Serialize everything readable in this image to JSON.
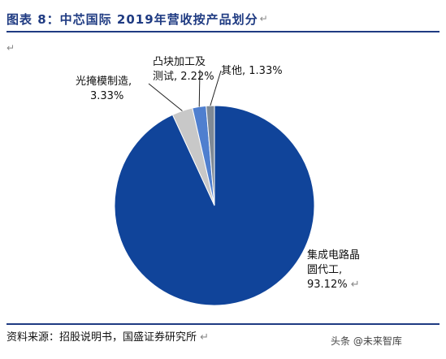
{
  "title": "图表 8：中芯国际 2019年营收按产品划分",
  "return_mark": "↵",
  "source": "资料来源：招股说明书，国盛证券研究所",
  "watermark": "头条 @未来智库",
  "chart_data": {
    "type": "pie",
    "slices": [
      {
        "label_lines": [
          "集成电路晶",
          "圆代工,"
        ],
        "value_text": "93.12%",
        "value": 93.12,
        "color": "#10449a"
      },
      {
        "label_lines": [
          "光掩模制造,"
        ],
        "value_text": "3.33%",
        "value": 3.33,
        "color": "#c8c8c8"
      },
      {
        "label_lines": [
          "凸块加工及",
          "测试,"
        ],
        "value_text": "2.22%",
        "value": 2.22,
        "color": "#4f7fcf"
      },
      {
        "label_lines": [
          "其他,"
        ],
        "value_text": "1.33%",
        "value": 1.33,
        "color": "#7f8a96"
      }
    ]
  }
}
